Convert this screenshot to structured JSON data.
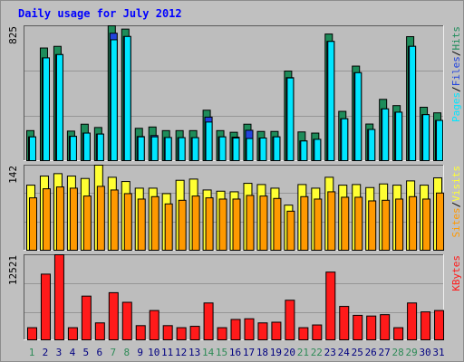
{
  "title": "Daily usage for July 2012",
  "colors": {
    "hits": "#1e8c5a",
    "files": "#2244dd",
    "pages": "#00e6ff",
    "visits": "#ffff33",
    "sites": "#ff9900",
    "kbytes": "#ff1a1a",
    "weekend_label": "#2e8b57",
    "weekday_label": "#000080",
    "separator": "#000000",
    "title": "#0000ff"
  },
  "chart_data": [
    {
      "type": "bar",
      "name": "pages-files-hits",
      "ymax_label": "825",
      "ylim": [
        0,
        825
      ],
      "legend": [
        {
          "name": "Pages",
          "color": "#00e6ff"
        },
        {
          "name": "/",
          "color": "#000000"
        },
        {
          "name": "Files",
          "color": "#2244dd"
        },
        {
          "name": "/",
          "color": "#000000"
        },
        {
          "name": "Hits",
          "color": "#1e8c5a"
        }
      ],
      "categories": [
        "1",
        "2",
        "3",
        "4",
        "5",
        "6",
        "7",
        "8",
        "9",
        "10",
        "11",
        "12",
        "13",
        "14",
        "15",
        "16",
        "17",
        "18",
        "19",
        "20",
        "21",
        "22",
        "23",
        "24",
        "25",
        "26",
        "27",
        "28",
        "29",
        "30",
        "31"
      ],
      "series": [
        {
          "name": "Hits",
          "values": [
            188,
            690,
            700,
            185,
            227,
            207,
            825,
            805,
            202,
            210,
            188,
            188,
            188,
            312,
            188,
            178,
            227,
            183,
            183,
            550,
            180,
            173,
            775,
            305,
            580,
            228,
            378,
            340,
            759,
            330,
            296
          ]
        },
        {
          "name": "Files",
          "values": [
            150,
            630,
            650,
            153,
            173,
            167,
            780,
            760,
            152,
            158,
            146,
            145,
            145,
            270,
            150,
            148,
            190,
            143,
            150,
            510,
            125,
            135,
            730,
            260,
            540,
            195,
            320,
            300,
            700,
            285,
            250
          ]
        },
        {
          "name": "Pages",
          "values": [
            150,
            630,
            650,
            153,
            173,
            167,
            740,
            760,
            150,
            150,
            146,
            145,
            145,
            240,
            150,
            143,
            140,
            143,
            150,
            508,
            125,
            135,
            730,
            260,
            540,
            195,
            320,
            300,
            700,
            285,
            250
          ]
        }
      ]
    },
    {
      "type": "bar",
      "name": "sites-visits",
      "ymax_label": "142",
      "ylim": [
        0,
        142
      ],
      "legend": [
        {
          "name": "Sites",
          "color": "#ff9900"
        },
        {
          "name": "/",
          "color": "#000000"
        },
        {
          "name": "Visits",
          "color": "#ffff33"
        }
      ],
      "categories": [
        "1",
        "2",
        "3",
        "4",
        "5",
        "6",
        "7",
        "8",
        "9",
        "10",
        "11",
        "12",
        "13",
        "14",
        "15",
        "16",
        "17",
        "18",
        "19",
        "20",
        "21",
        "22",
        "23",
        "24",
        "25",
        "26",
        "27",
        "28",
        "29",
        "30",
        "31"
      ],
      "series": [
        {
          "name": "Visits",
          "values": [
            109,
            124,
            128,
            124,
            120,
            142,
            122,
            115,
            104,
            104,
            95,
            117,
            119,
            101,
            99,
            98,
            112,
            110,
            104,
            76,
            110,
            104,
            122,
            109,
            110,
            105,
            111,
            109,
            116,
            109,
            121
          ]
        },
        {
          "name": "Sites",
          "values": [
            88,
            103,
            106,
            104,
            91,
            107,
            101,
            95,
            86,
            90,
            78,
            84,
            91,
            88,
            86,
            86,
            92,
            91,
            87,
            66,
            90,
            86,
            98,
            89,
            89,
            83,
            84,
            86,
            90,
            86,
            96
          ]
        }
      ]
    },
    {
      "type": "bar",
      "name": "kbytes",
      "ymax_label": "12521",
      "ylim": [
        0,
        12521
      ],
      "legend": [
        {
          "name": "KBytes",
          "color": "#ff1a1a"
        }
      ],
      "categories": [
        "1",
        "2",
        "3",
        "4",
        "5",
        "6",
        "7",
        "8",
        "9",
        "10",
        "11",
        "12",
        "13",
        "14",
        "15",
        "16",
        "17",
        "18",
        "19",
        "20",
        "21",
        "22",
        "23",
        "24",
        "25",
        "26",
        "27",
        "28",
        "29",
        "30",
        "31"
      ],
      "series": [
        {
          "name": "KBytes",
          "values": [
            1900,
            9700,
            12521,
            1900,
            6500,
            2600,
            7000,
            5600,
            2200,
            4400,
            2200,
            1900,
            2100,
            5500,
            1900,
            3100,
            3200,
            2600,
            2700,
            5900,
            1900,
            2300,
            10000,
            5000,
            3700,
            3600,
            3800,
            1900,
            5500,
            4200,
            4400
          ]
        }
      ]
    }
  ]
}
